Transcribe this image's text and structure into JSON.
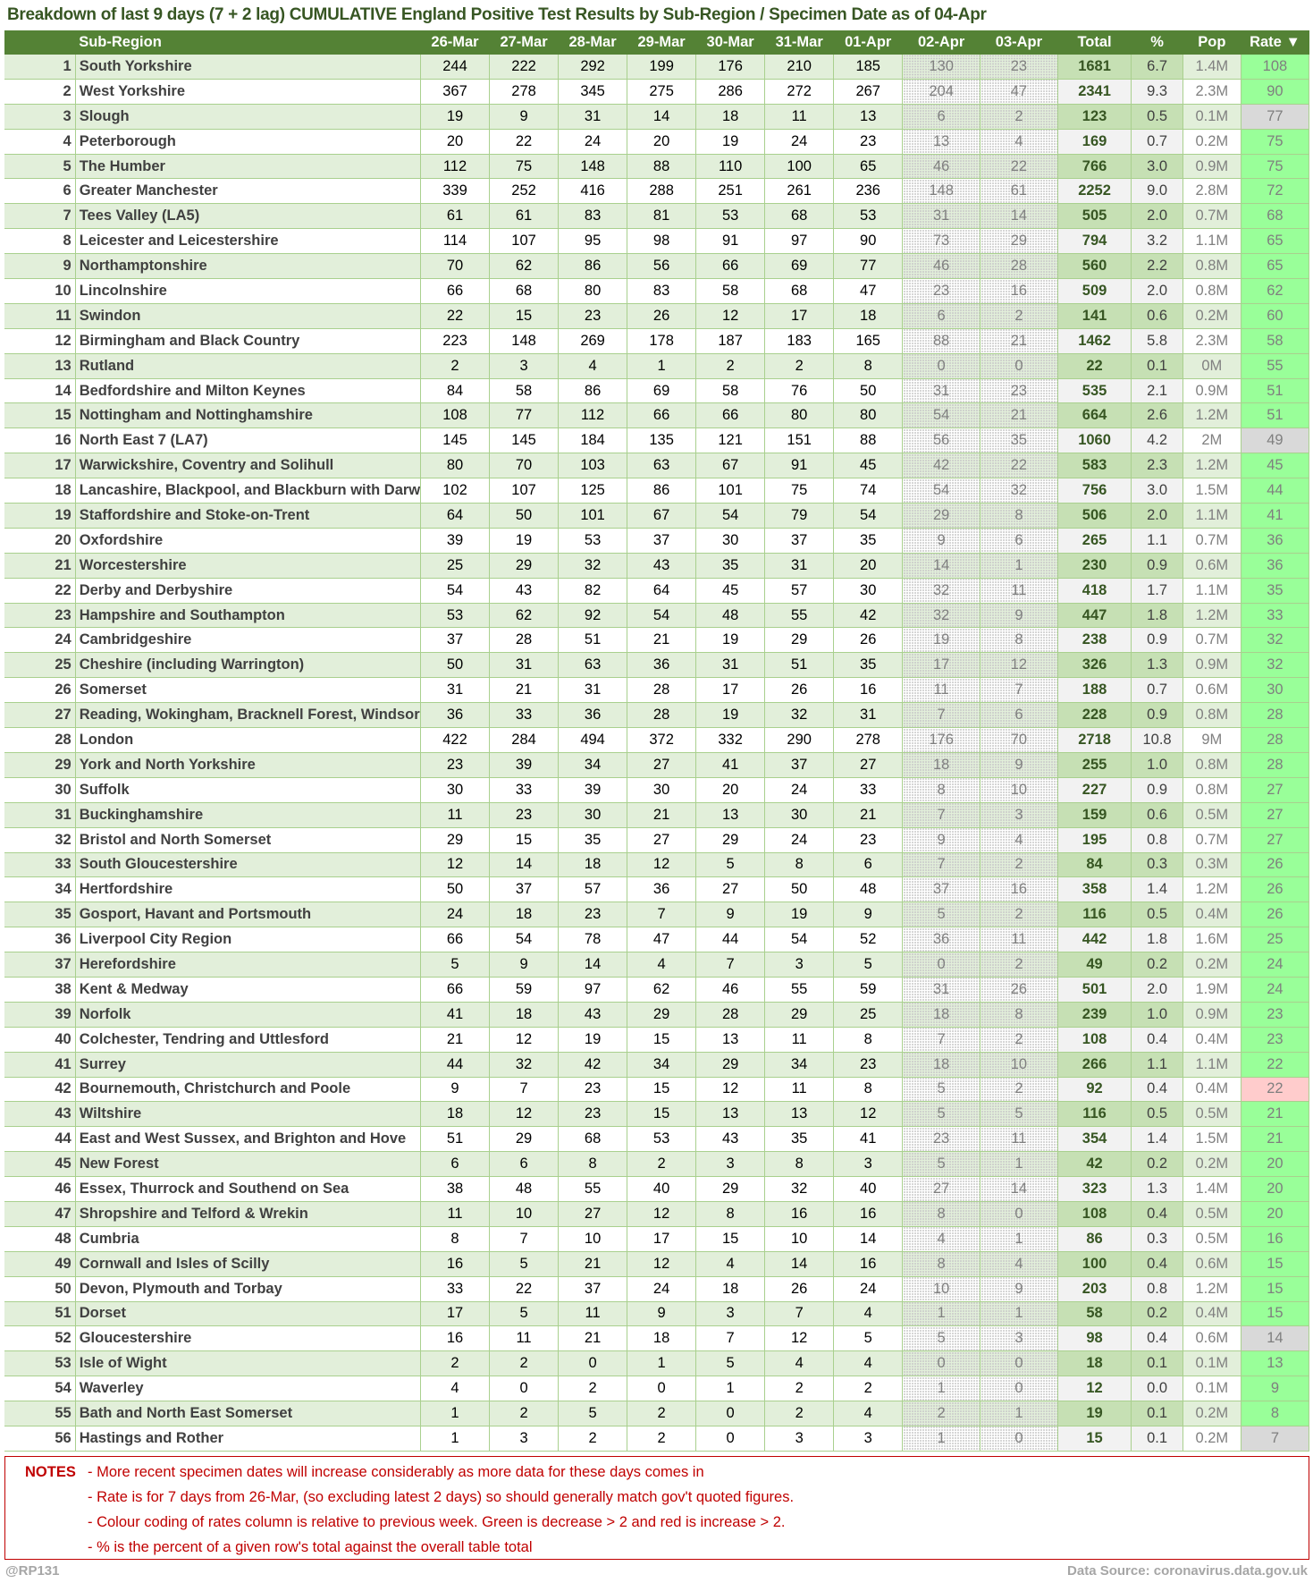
{
  "title": "Breakdown of last 9 days (7 + 2 lag) CUMULATIVE England Positive Test Results by Sub-Region / Specimen Date as of 04-Apr",
  "colors": {
    "header": "#548235",
    "rate_green": "#99ff99",
    "rate_grey": "#d9d9d9",
    "rate_red": "#ffcccc",
    "notes": "#c00000"
  },
  "headers": [
    "",
    "Sub-Region",
    "26-Mar",
    "27-Mar",
    "28-Mar",
    "29-Mar",
    "30-Mar",
    "31-Mar",
    "01-Apr",
    "02-Apr",
    "03-Apr",
    "Total",
    "%",
    "Pop",
    "Rate ▼"
  ],
  "rows": [
    {
      "rank": "1",
      "name": "South Yorkshire",
      "days": [
        "244",
        "222",
        "292",
        "199",
        "176",
        "210",
        "185",
        "130",
        "23"
      ],
      "total": "1681",
      "pct": "6.7",
      "pop": "1.4M",
      "rate": "108",
      "rate_color": "green"
    },
    {
      "rank": "2",
      "name": "West Yorkshire",
      "days": [
        "367",
        "278",
        "345",
        "275",
        "286",
        "272",
        "267",
        "204",
        "47"
      ],
      "total": "2341",
      "pct": "9.3",
      "pop": "2.3M",
      "rate": "90",
      "rate_color": "green"
    },
    {
      "rank": "3",
      "name": "Slough",
      "days": [
        "19",
        "9",
        "31",
        "14",
        "18",
        "11",
        "13",
        "6",
        "2"
      ],
      "total": "123",
      "pct": "0.5",
      "pop": "0.1M",
      "rate": "77",
      "rate_color": "grey"
    },
    {
      "rank": "4",
      "name": "Peterborough",
      "days": [
        "20",
        "22",
        "24",
        "20",
        "19",
        "24",
        "23",
        "13",
        "4"
      ],
      "total": "169",
      "pct": "0.7",
      "pop": "0.2M",
      "rate": "75",
      "rate_color": "green"
    },
    {
      "rank": "5",
      "name": "The Humber",
      "days": [
        "112",
        "75",
        "148",
        "88",
        "110",
        "100",
        "65",
        "46",
        "22"
      ],
      "total": "766",
      "pct": "3.0",
      "pop": "0.9M",
      "rate": "75",
      "rate_color": "green"
    },
    {
      "rank": "6",
      "name": "Greater Manchester",
      "days": [
        "339",
        "252",
        "416",
        "288",
        "251",
        "261",
        "236",
        "148",
        "61"
      ],
      "total": "2252",
      "pct": "9.0",
      "pop": "2.8M",
      "rate": "72",
      "rate_color": "green"
    },
    {
      "rank": "7",
      "name": "Tees Valley (LA5)",
      "days": [
        "61",
        "61",
        "83",
        "81",
        "53",
        "68",
        "53",
        "31",
        "14"
      ],
      "total": "505",
      "pct": "2.0",
      "pop": "0.7M",
      "rate": "68",
      "rate_color": "green"
    },
    {
      "rank": "8",
      "name": "Leicester and Leicestershire",
      "days": [
        "114",
        "107",
        "95",
        "98",
        "91",
        "97",
        "90",
        "73",
        "29"
      ],
      "total": "794",
      "pct": "3.2",
      "pop": "1.1M",
      "rate": "65",
      "rate_color": "green"
    },
    {
      "rank": "9",
      "name": "Northamptonshire",
      "days": [
        "70",
        "62",
        "86",
        "56",
        "66",
        "69",
        "77",
        "46",
        "28"
      ],
      "total": "560",
      "pct": "2.2",
      "pop": "0.8M",
      "rate": "65",
      "rate_color": "green"
    },
    {
      "rank": "10",
      "name": "Lincolnshire",
      "days": [
        "66",
        "68",
        "80",
        "83",
        "58",
        "68",
        "47",
        "23",
        "16"
      ],
      "total": "509",
      "pct": "2.0",
      "pop": "0.8M",
      "rate": "62",
      "rate_color": "green"
    },
    {
      "rank": "11",
      "name": "Swindon",
      "days": [
        "22",
        "15",
        "23",
        "26",
        "12",
        "17",
        "18",
        "6",
        "2"
      ],
      "total": "141",
      "pct": "0.6",
      "pop": "0.2M",
      "rate": "60",
      "rate_color": "green"
    },
    {
      "rank": "12",
      "name": "Birmingham and Black Country",
      "days": [
        "223",
        "148",
        "269",
        "178",
        "187",
        "183",
        "165",
        "88",
        "21"
      ],
      "total": "1462",
      "pct": "5.8",
      "pop": "2.3M",
      "rate": "58",
      "rate_color": "green"
    },
    {
      "rank": "13",
      "name": "Rutland",
      "days": [
        "2",
        "3",
        "4",
        "1",
        "2",
        "2",
        "8",
        "0",
        "0"
      ],
      "total": "22",
      "pct": "0.1",
      "pop": "0M",
      "rate": "55",
      "rate_color": "green"
    },
    {
      "rank": "14",
      "name": "Bedfordshire and Milton Keynes",
      "days": [
        "84",
        "58",
        "86",
        "69",
        "58",
        "76",
        "50",
        "31",
        "23"
      ],
      "total": "535",
      "pct": "2.1",
      "pop": "0.9M",
      "rate": "51",
      "rate_color": "green"
    },
    {
      "rank": "15",
      "name": "Nottingham and Nottinghamshire",
      "days": [
        "108",
        "77",
        "112",
        "66",
        "66",
        "80",
        "80",
        "54",
        "21"
      ],
      "total": "664",
      "pct": "2.6",
      "pop": "1.2M",
      "rate": "51",
      "rate_color": "green"
    },
    {
      "rank": "16",
      "name": "North East 7 (LA7)",
      "days": [
        "145",
        "145",
        "184",
        "135",
        "121",
        "151",
        "88",
        "56",
        "35"
      ],
      "total": "1060",
      "pct": "4.2",
      "pop": "2M",
      "rate": "49",
      "rate_color": "grey"
    },
    {
      "rank": "17",
      "name": "Warwickshire, Coventry and Solihull",
      "days": [
        "80",
        "70",
        "103",
        "63",
        "67",
        "91",
        "45",
        "42",
        "22"
      ],
      "total": "583",
      "pct": "2.3",
      "pop": "1.2M",
      "rate": "45",
      "rate_color": "green"
    },
    {
      "rank": "18",
      "name": "Lancashire, Blackpool, and Blackburn with Darwen",
      "days": [
        "102",
        "107",
        "125",
        "86",
        "101",
        "75",
        "74",
        "54",
        "32"
      ],
      "total": "756",
      "pct": "3.0",
      "pop": "1.5M",
      "rate": "44",
      "rate_color": "green"
    },
    {
      "rank": "19",
      "name": "Staffordshire and Stoke-on-Trent",
      "days": [
        "64",
        "50",
        "101",
        "67",
        "54",
        "79",
        "54",
        "29",
        "8"
      ],
      "total": "506",
      "pct": "2.0",
      "pop": "1.1M",
      "rate": "41",
      "rate_color": "green"
    },
    {
      "rank": "20",
      "name": "Oxfordshire",
      "days": [
        "39",
        "19",
        "53",
        "37",
        "30",
        "37",
        "35",
        "9",
        "6"
      ],
      "total": "265",
      "pct": "1.1",
      "pop": "0.7M",
      "rate": "36",
      "rate_color": "green"
    },
    {
      "rank": "21",
      "name": "Worcestershire",
      "days": [
        "25",
        "29",
        "32",
        "43",
        "35",
        "31",
        "20",
        "14",
        "1"
      ],
      "total": "230",
      "pct": "0.9",
      "pop": "0.6M",
      "rate": "36",
      "rate_color": "green"
    },
    {
      "rank": "22",
      "name": "Derby and Derbyshire",
      "days": [
        "54",
        "43",
        "82",
        "64",
        "45",
        "57",
        "30",
        "32",
        "11"
      ],
      "total": "418",
      "pct": "1.7",
      "pop": "1.1M",
      "rate": "35",
      "rate_color": "green"
    },
    {
      "rank": "23",
      "name": "Hampshire and Southampton",
      "days": [
        "53",
        "62",
        "92",
        "54",
        "48",
        "55",
        "42",
        "32",
        "9"
      ],
      "total": "447",
      "pct": "1.8",
      "pop": "1.2M",
      "rate": "33",
      "rate_color": "green"
    },
    {
      "rank": "24",
      "name": "Cambridgeshire",
      "days": [
        "37",
        "28",
        "51",
        "21",
        "19",
        "29",
        "26",
        "19",
        "8"
      ],
      "total": "238",
      "pct": "0.9",
      "pop": "0.7M",
      "rate": "32",
      "rate_color": "green"
    },
    {
      "rank": "25",
      "name": "Cheshire (including Warrington)",
      "days": [
        "50",
        "31",
        "63",
        "36",
        "31",
        "51",
        "35",
        "17",
        "12"
      ],
      "total": "326",
      "pct": "1.3",
      "pop": "0.9M",
      "rate": "32",
      "rate_color": "green"
    },
    {
      "rank": "26",
      "name": "Somerset",
      "days": [
        "31",
        "21",
        "31",
        "28",
        "17",
        "26",
        "16",
        "11",
        "7"
      ],
      "total": "188",
      "pct": "0.7",
      "pop": "0.6M",
      "rate": "30",
      "rate_color": "green"
    },
    {
      "rank": "27",
      "name": "Reading, Wokingham, Bracknell Forest, Windsor ar",
      "days": [
        "36",
        "33",
        "36",
        "28",
        "19",
        "32",
        "31",
        "7",
        "6"
      ],
      "total": "228",
      "pct": "0.9",
      "pop": "0.8M",
      "rate": "28",
      "rate_color": "green"
    },
    {
      "rank": "28",
      "name": "London",
      "days": [
        "422",
        "284",
        "494",
        "372",
        "332",
        "290",
        "278",
        "176",
        "70"
      ],
      "total": "2718",
      "pct": "10.8",
      "pop": "9M",
      "rate": "28",
      "rate_color": "green"
    },
    {
      "rank": "29",
      "name": "York and North Yorkshire",
      "days": [
        "23",
        "39",
        "34",
        "27",
        "41",
        "37",
        "27",
        "18",
        "9"
      ],
      "total": "255",
      "pct": "1.0",
      "pop": "0.8M",
      "rate": "28",
      "rate_color": "green"
    },
    {
      "rank": "30",
      "name": "Suffolk",
      "days": [
        "30",
        "33",
        "39",
        "30",
        "20",
        "24",
        "33",
        "8",
        "10"
      ],
      "total": "227",
      "pct": "0.9",
      "pop": "0.8M",
      "rate": "27",
      "rate_color": "green"
    },
    {
      "rank": "31",
      "name": "Buckinghamshire",
      "days": [
        "11",
        "23",
        "30",
        "21",
        "13",
        "30",
        "21",
        "7",
        "3"
      ],
      "total": "159",
      "pct": "0.6",
      "pop": "0.5M",
      "rate": "27",
      "rate_color": "green"
    },
    {
      "rank": "32",
      "name": "Bristol and North Somerset",
      "days": [
        "29",
        "15",
        "35",
        "27",
        "29",
        "24",
        "23",
        "9",
        "4"
      ],
      "total": "195",
      "pct": "0.8",
      "pop": "0.7M",
      "rate": "27",
      "rate_color": "green"
    },
    {
      "rank": "33",
      "name": "South Gloucestershire",
      "days": [
        "12",
        "14",
        "18",
        "12",
        "5",
        "8",
        "6",
        "7",
        "2"
      ],
      "total": "84",
      "pct": "0.3",
      "pop": "0.3M",
      "rate": "26",
      "rate_color": "green"
    },
    {
      "rank": "34",
      "name": "Hertfordshire",
      "days": [
        "50",
        "37",
        "57",
        "36",
        "27",
        "50",
        "48",
        "37",
        "16"
      ],
      "total": "358",
      "pct": "1.4",
      "pop": "1.2M",
      "rate": "26",
      "rate_color": "green"
    },
    {
      "rank": "35",
      "name": "Gosport, Havant and Portsmouth",
      "days": [
        "24",
        "18",
        "23",
        "7",
        "9",
        "19",
        "9",
        "5",
        "2"
      ],
      "total": "116",
      "pct": "0.5",
      "pop": "0.4M",
      "rate": "26",
      "rate_color": "green"
    },
    {
      "rank": "36",
      "name": "Liverpool City Region",
      "days": [
        "66",
        "54",
        "78",
        "47",
        "44",
        "54",
        "52",
        "36",
        "11"
      ],
      "total": "442",
      "pct": "1.8",
      "pop": "1.6M",
      "rate": "25",
      "rate_color": "green"
    },
    {
      "rank": "37",
      "name": "Herefordshire",
      "days": [
        "5",
        "9",
        "14",
        "4",
        "7",
        "3",
        "5",
        "0",
        "2"
      ],
      "total": "49",
      "pct": "0.2",
      "pop": "0.2M",
      "rate": "24",
      "rate_color": "green"
    },
    {
      "rank": "38",
      "name": "Kent & Medway",
      "days": [
        "66",
        "59",
        "97",
        "62",
        "46",
        "55",
        "59",
        "31",
        "26"
      ],
      "total": "501",
      "pct": "2.0",
      "pop": "1.9M",
      "rate": "24",
      "rate_color": "green"
    },
    {
      "rank": "39",
      "name": "Norfolk",
      "days": [
        "41",
        "18",
        "43",
        "29",
        "28",
        "29",
        "25",
        "18",
        "8"
      ],
      "total": "239",
      "pct": "1.0",
      "pop": "0.9M",
      "rate": "23",
      "rate_color": "green"
    },
    {
      "rank": "40",
      "name": "Colchester, Tendring and Uttlesford",
      "days": [
        "21",
        "12",
        "19",
        "15",
        "13",
        "11",
        "8",
        "7",
        "2"
      ],
      "total": "108",
      "pct": "0.4",
      "pop": "0.4M",
      "rate": "23",
      "rate_color": "green"
    },
    {
      "rank": "41",
      "name": "Surrey",
      "days": [
        "44",
        "32",
        "42",
        "34",
        "29",
        "34",
        "23",
        "18",
        "10"
      ],
      "total": "266",
      "pct": "1.1",
      "pop": "1.1M",
      "rate": "22",
      "rate_color": "green"
    },
    {
      "rank": "42",
      "name": "Bournemouth, Christchurch and Poole",
      "days": [
        "9",
        "7",
        "23",
        "15",
        "12",
        "11",
        "8",
        "5",
        "2"
      ],
      "total": "92",
      "pct": "0.4",
      "pop": "0.4M",
      "rate": "22",
      "rate_color": "red"
    },
    {
      "rank": "43",
      "name": "Wiltshire",
      "days": [
        "18",
        "12",
        "23",
        "15",
        "13",
        "13",
        "12",
        "5",
        "5"
      ],
      "total": "116",
      "pct": "0.5",
      "pop": "0.5M",
      "rate": "21",
      "rate_color": "green"
    },
    {
      "rank": "44",
      "name": "East and West Sussex, and Brighton and Hove",
      "days": [
        "51",
        "29",
        "68",
        "53",
        "43",
        "35",
        "41",
        "23",
        "11"
      ],
      "total": "354",
      "pct": "1.4",
      "pop": "1.5M",
      "rate": "21",
      "rate_color": "green"
    },
    {
      "rank": "45",
      "name": "New Forest",
      "days": [
        "6",
        "6",
        "8",
        "2",
        "3",
        "8",
        "3",
        "5",
        "1"
      ],
      "total": "42",
      "pct": "0.2",
      "pop": "0.2M",
      "rate": "20",
      "rate_color": "green"
    },
    {
      "rank": "46",
      "name": "Essex, Thurrock and Southend on Sea",
      "days": [
        "38",
        "48",
        "55",
        "40",
        "29",
        "32",
        "40",
        "27",
        "14"
      ],
      "total": "323",
      "pct": "1.3",
      "pop": "1.4M",
      "rate": "20",
      "rate_color": "green"
    },
    {
      "rank": "47",
      "name": "Shropshire and Telford & Wrekin",
      "days": [
        "11",
        "10",
        "27",
        "12",
        "8",
        "16",
        "16",
        "8",
        "0"
      ],
      "total": "108",
      "pct": "0.4",
      "pop": "0.5M",
      "rate": "20",
      "rate_color": "green"
    },
    {
      "rank": "48",
      "name": "Cumbria",
      "days": [
        "8",
        "7",
        "10",
        "17",
        "15",
        "10",
        "14",
        "4",
        "1"
      ],
      "total": "86",
      "pct": "0.3",
      "pop": "0.5M",
      "rate": "16",
      "rate_color": "green"
    },
    {
      "rank": "49",
      "name": "Cornwall and Isles of Scilly",
      "days": [
        "16",
        "5",
        "21",
        "12",
        "4",
        "14",
        "16",
        "8",
        "4"
      ],
      "total": "100",
      "pct": "0.4",
      "pop": "0.6M",
      "rate": "15",
      "rate_color": "green"
    },
    {
      "rank": "50",
      "name": "Devon, Plymouth and Torbay",
      "days": [
        "33",
        "22",
        "37",
        "24",
        "18",
        "26",
        "24",
        "10",
        "9"
      ],
      "total": "203",
      "pct": "0.8",
      "pop": "1.2M",
      "rate": "15",
      "rate_color": "green"
    },
    {
      "rank": "51",
      "name": "Dorset",
      "days": [
        "17",
        "5",
        "11",
        "9",
        "3",
        "7",
        "4",
        "1",
        "1"
      ],
      "total": "58",
      "pct": "0.2",
      "pop": "0.4M",
      "rate": "15",
      "rate_color": "green"
    },
    {
      "rank": "52",
      "name": "Gloucestershire",
      "days": [
        "16",
        "11",
        "21",
        "18",
        "7",
        "12",
        "5",
        "5",
        "3"
      ],
      "total": "98",
      "pct": "0.4",
      "pop": "0.6M",
      "rate": "14",
      "rate_color": "grey"
    },
    {
      "rank": "53",
      "name": "Isle of Wight",
      "days": [
        "2",
        "2",
        "0",
        "1",
        "5",
        "4",
        "4",
        "0",
        "0"
      ],
      "total": "18",
      "pct": "0.1",
      "pop": "0.1M",
      "rate": "13",
      "rate_color": "green"
    },
    {
      "rank": "54",
      "name": "Waverley",
      "days": [
        "4",
        "0",
        "2",
        "0",
        "1",
        "2",
        "2",
        "1",
        "0"
      ],
      "total": "12",
      "pct": "0.0",
      "pop": "0.1M",
      "rate": "9",
      "rate_color": "green"
    },
    {
      "rank": "55",
      "name": "Bath and North East Somerset",
      "days": [
        "1",
        "2",
        "5",
        "2",
        "0",
        "2",
        "4",
        "2",
        "1"
      ],
      "total": "19",
      "pct": "0.1",
      "pop": "0.2M",
      "rate": "8",
      "rate_color": "green"
    },
    {
      "rank": "56",
      "name": "Hastings and Rother",
      "days": [
        "1",
        "3",
        "2",
        "2",
        "0",
        "3",
        "3",
        "1",
        "0"
      ],
      "total": "15",
      "pct": "0.1",
      "pop": "0.2M",
      "rate": "7",
      "rate_color": "grey"
    }
  ],
  "notes": {
    "label": "NOTES",
    "lines": [
      "- More recent specimen dates will increase considerably as more data for these days comes in",
      "- Rate is for 7 days from 26-Mar, (so excluding latest 2 days) so should generally match gov't quoted figures.",
      "- Colour coding of rates column is relative to previous week. Green is decrease > 2 and red is increase > 2.",
      "- % is the percent of a given row's total against the overall table total"
    ]
  },
  "footer": {
    "left": "@RP131",
    "right": "Data Source: coronavirus.data.gov.uk"
  }
}
